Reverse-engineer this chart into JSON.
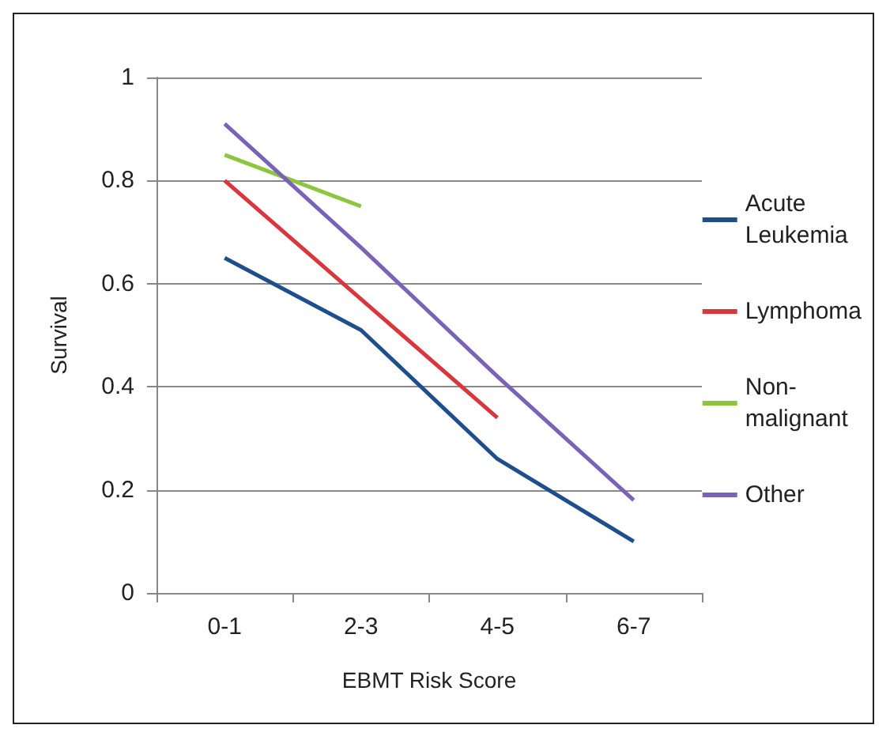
{
  "chart_data": {
    "type": "line",
    "xlabel": "EBMT Risk Score",
    "ylabel": "Survival",
    "categories": [
      "0-1",
      "2-3",
      "4-5",
      "6-7"
    ],
    "series": [
      {
        "name": "Acute Leukemia",
        "color": "#1f4e8c",
        "values": [
          0.65,
          0.51,
          0.26,
          0.1
        ]
      },
      {
        "name": "Lymphoma",
        "color": "#d9363e",
        "values": [
          0.8,
          0.57,
          0.34,
          null
        ]
      },
      {
        "name": "Non-malignant",
        "color": "#8cc63f",
        "values": [
          0.85,
          0.75,
          null,
          null
        ]
      },
      {
        "name": "Other",
        "color": "#7b62b8",
        "values": [
          0.91,
          0.67,
          0.42,
          0.18
        ]
      }
    ],
    "ylim": [
      0,
      1
    ],
    "yticks": [
      0,
      0.2,
      0.4,
      0.6,
      0.8,
      1
    ],
    "grid": "y",
    "legend": "right",
    "marker": "none",
    "line_style": "solid"
  }
}
